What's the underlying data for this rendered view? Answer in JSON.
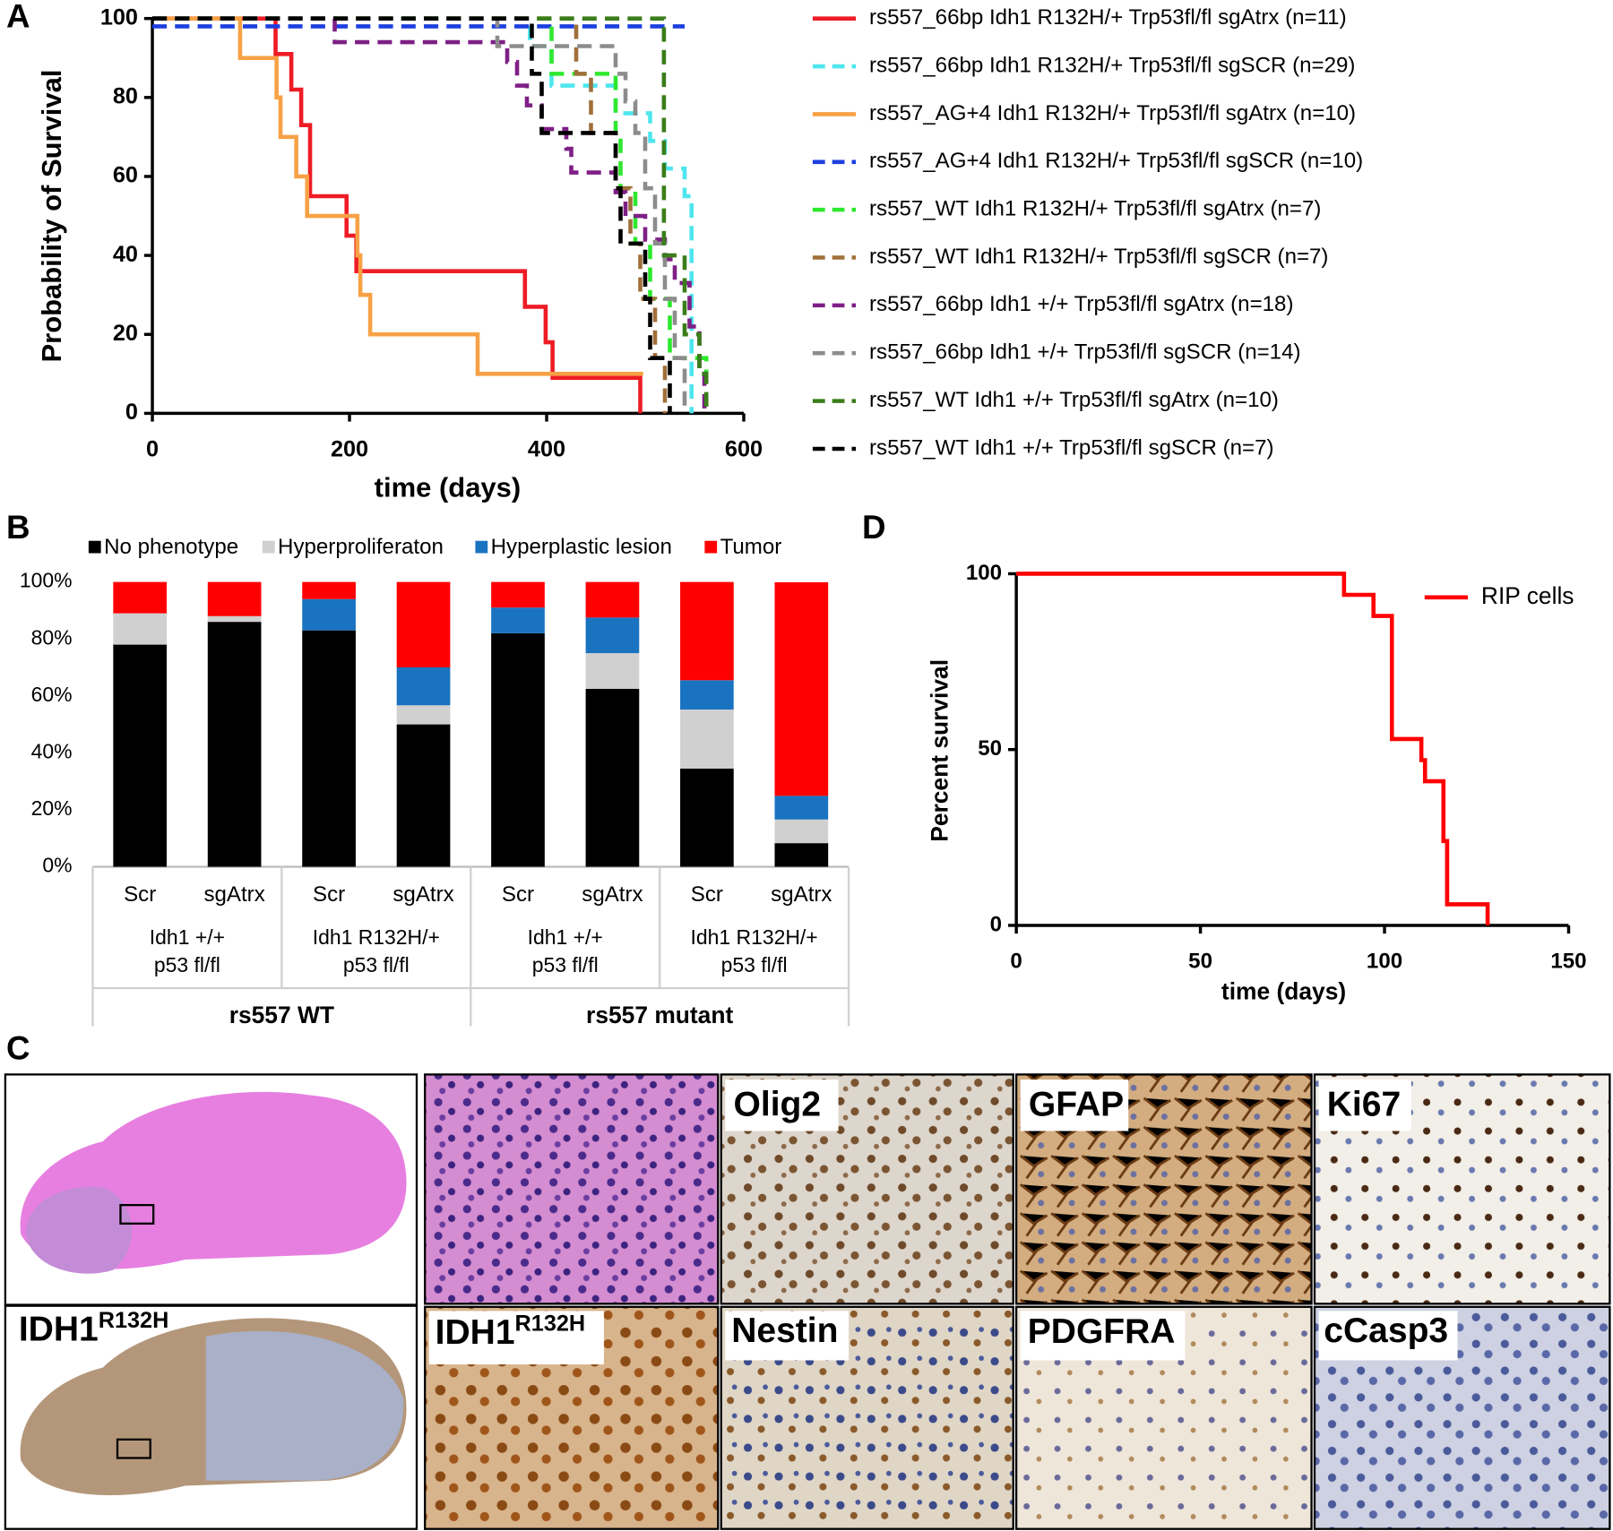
{
  "chart_data": [
    {
      "type": "step",
      "panel": "A",
      "y_label": "Probability of Survival",
      "x_label": "time (days)",
      "xlim": [
        0,
        600
      ],
      "xticks": [
        0,
        200,
        400,
        600
      ],
      "ylim": [
        0,
        100
      ],
      "yticks": [
        0,
        20,
        40,
        60,
        80,
        100
      ],
      "legend": "right",
      "series": [
        {
          "name": "rs557_66bp Idh1 R132H/+ Trp53fl/fl sgAtrx (n=11)",
          "color": "#ee1c25",
          "dash": false,
          "x": [
            0,
            125,
            141,
            151,
            160,
            197,
            207,
            378,
            399,
            406,
            495
          ],
          "values": [
            100,
            91,
            82,
            73,
            55,
            45,
            36,
            27,
            18,
            9,
            0
          ]
        },
        {
          "name": "rs557_66bp Idh1 R132H/+ Trp53fl/fl sgSCR (n=29)",
          "color": "#4ee6ee",
          "dash": true,
          "x": [
            0,
            383,
            405,
            470,
            505,
            520,
            540,
            547
          ],
          "values": [
            100,
            93,
            83,
            76,
            69,
            62,
            55,
            0
          ]
        },
        {
          "name": "rs557_AG+4 Idh1 R132H/+ Trp53fl/fl sgAtrx (n=10)",
          "color": "#f7a145",
          "dash": false,
          "x": [
            0,
            89,
            126,
            130,
            146,
            157,
            208,
            211,
            221,
            330,
            498
          ],
          "values": [
            100,
            90,
            80,
            70,
            60,
            50,
            40,
            30,
            20,
            10,
            10
          ]
        },
        {
          "name": "rs557_AG+4  Idh1 R132H/+ Trp53fl/fl sgSCR (n=10)",
          "color": "#1d3fe0",
          "dash": true,
          "x": [
            0,
            540
          ],
          "values": [
            98,
            98
          ]
        },
        {
          "name": "rs557_WT Idh1 R132H/+ Trp53fl/fl sgAtrx (n=7)",
          "color": "#2ee82e",
          "dash": true,
          "x": [
            0,
            405,
            470,
            475,
            490,
            505,
            525,
            562
          ],
          "values": [
            100,
            86,
            71,
            57,
            43,
            29,
            14,
            0
          ]
        },
        {
          "name": "rs557_WT Idh1 R132H/+ Trp53fl/fl sgSCR (n=7)",
          "color": "#a0703a",
          "dash": true,
          "x": [
            0,
            430,
            445,
            470,
            485,
            495,
            510,
            520
          ],
          "values": [
            100,
            86,
            71,
            57,
            43,
            29,
            14,
            0
          ]
        },
        {
          "name": "rs557_66bp Idh1 +/+ Trp53fl/fl sgAtrx (n=18)",
          "color": "#7e1f86",
          "dash": true,
          "x": [
            0,
            185,
            360,
            370,
            380,
            395,
            420,
            425,
            470,
            480,
            500,
            520,
            530,
            545,
            555,
            560
          ],
          "values": [
            100,
            94,
            89,
            83,
            78,
            72,
            67,
            61,
            56,
            50,
            44,
            39,
            33,
            22,
            11,
            0
          ]
        },
        {
          "name": "rs557_66bp Idh1 +/+ Trp53fl/fl sgSCR (n=14)",
          "color": "#8c8c8c",
          "dash": true,
          "x": [
            0,
            350,
            470,
            480,
            490,
            500,
            510,
            520,
            530,
            540
          ],
          "values": [
            100,
            93,
            86,
            79,
            71,
            57,
            43,
            29,
            14,
            0
          ]
        },
        {
          "name": "rs557_WT Idh1 +/+ Trp53fl/fl sgAtrx (n=10)",
          "color": "#3a7d1a",
          "dash": true,
          "x": [
            0,
            519,
            540,
            555,
            562
          ],
          "values": [
            100,
            40,
            20,
            10,
            0
          ]
        },
        {
          "name": "rs557_WT Idh1 +/+ Trp53fl/fl sgSCR (n=7)",
          "color": "#000000",
          "dash": true,
          "x": [
            0,
            385,
            395,
            470,
            475,
            500,
            505,
            525
          ],
          "values": [
            100,
            86,
            71,
            57,
            43,
            29,
            14,
            0
          ]
        }
      ]
    },
    {
      "type": "bar",
      "panel": "B",
      "stacked": true,
      "legend": "top",
      "categories": [
        "Scr",
        "sgAtrx",
        "Scr",
        "sgAtrx",
        "Scr",
        "sgAtrx",
        "Scr",
        "sgAtrx"
      ],
      "groups": [
        [
          "Idh1 +/+",
          "p53 fl/fl"
        ],
        [
          "Idh1 R132H/+",
          "p53 fl/fl"
        ],
        [
          "Idh1 +/+",
          "p53 fl/fl"
        ],
        [
          "Idh1 R132H/+",
          "p53  fl/fl"
        ]
      ],
      "supergroups": [
        "rs557 WT",
        "rs557 mutant"
      ],
      "ylim": [
        0,
        100
      ],
      "yticks": [
        {
          "value": 0,
          "label": "0%"
        },
        {
          "value": 20,
          "label": "20%"
        },
        {
          "value": 40,
          "label": "40%"
        },
        {
          "value": 60,
          "label": "60%"
        },
        {
          "value": 80,
          "label": "80%"
        },
        {
          "value": 100,
          "label": "100%"
        }
      ],
      "series": [
        {
          "name": "No phenotype",
          "color": "#000000",
          "values": [
            78,
            86,
            83,
            50,
            82,
            62.5,
            34.5,
            8.3
          ]
        },
        {
          "name": "Hyperproliferaton",
          "color": "#d0d0d0",
          "values": [
            11,
            2,
            0,
            6.7,
            0,
            12.5,
            20.7,
            8.3
          ]
        },
        {
          "name": "Hyperplastic lesion",
          "color": "#1a73c0",
          "values": [
            0,
            0,
            11,
            13.3,
            9,
            12.5,
            10.3,
            8.3
          ]
        },
        {
          "name": "Tumor",
          "color": "#ff0000",
          "values": [
            11,
            12,
            6,
            30,
            9,
            12.5,
            34.5,
            75
          ]
        }
      ]
    },
    {
      "type": "step",
      "panel": "D",
      "y_label": "Percent survival",
      "x_label": "time (days)",
      "xlim": [
        0,
        150
      ],
      "xticks": [
        0,
        50,
        100,
        150
      ],
      "ylim": [
        0,
        100
      ],
      "yticks": [
        0,
        50,
        100
      ],
      "legend": "upper right",
      "series": [
        {
          "name": "RIP cells",
          "color": "#ff0000",
          "dash": false,
          "x": [
            0,
            89,
            97,
            102,
            110,
            111,
            116,
            117,
            128
          ],
          "values": [
            100,
            94,
            88,
            53,
            47,
            41,
            24,
            6,
            0
          ]
        }
      ]
    }
  ],
  "histology": {
    "panel": "C",
    "labels": [
      "Olig2",
      "GFAP",
      "Ki67",
      {
        "base": "IDH1",
        "sup": "R132H"
      },
      {
        "base": "IDH1",
        "sup": "R132H"
      },
      "Nestin",
      "PDGFRA",
      "cCasp3"
    ]
  }
}
